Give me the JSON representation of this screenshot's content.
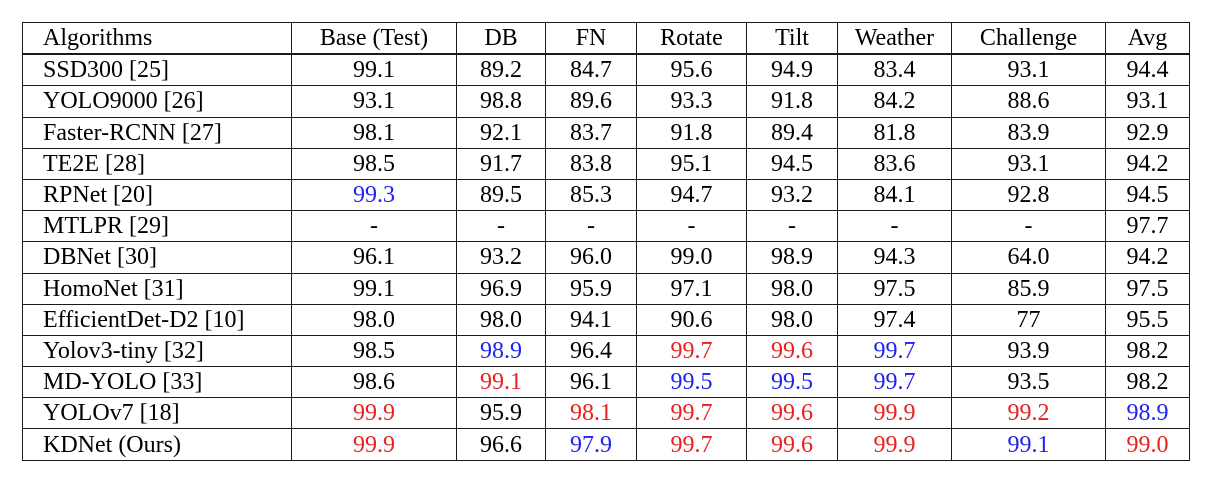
{
  "table": {
    "colors": {
      "first": "#e8211f",
      "second": "#1f22f0"
    },
    "headers": [
      "Algorithms",
      "Base (Test)",
      "DB",
      "FN",
      "Rotate",
      "Tilt",
      "Weather",
      "Challenge",
      "Avg"
    ],
    "rows": [
      {
        "algorithm": "SSD300 [25]",
        "values": [
          "99.1",
          "89.2",
          "84.7",
          "95.6",
          "94.9",
          "83.4",
          "93.1",
          "94.4"
        ],
        "highlight": [
          "",
          "",
          "",
          "",
          "",
          "",
          "",
          ""
        ]
      },
      {
        "algorithm": "YOLO9000 [26]",
        "values": [
          "93.1",
          "98.8",
          "89.6",
          "93.3",
          "91.8",
          "84.2",
          "88.6",
          "93.1"
        ],
        "highlight": [
          "",
          "",
          "",
          "",
          "",
          "",
          "",
          ""
        ]
      },
      {
        "algorithm": "Faster-RCNN [27]",
        "values": [
          "98.1",
          "92.1",
          "83.7",
          "91.8",
          "89.4",
          "81.8",
          "83.9",
          "92.9"
        ],
        "highlight": [
          "",
          "",
          "",
          "",
          "",
          "",
          "",
          ""
        ]
      },
      {
        "algorithm": "TE2E [28]",
        "values": [
          "98.5",
          "91.7",
          "83.8",
          "95.1",
          "94.5",
          "83.6",
          "93.1",
          "94.2"
        ],
        "highlight": [
          "",
          "",
          "",
          "",
          "",
          "",
          "",
          ""
        ]
      },
      {
        "algorithm": "RPNet [20]",
        "values": [
          "99.3",
          "89.5",
          "85.3",
          "94.7",
          "93.2",
          "84.1",
          "92.8",
          "94.5"
        ],
        "highlight": [
          "blue",
          "",
          "",
          "",
          "",
          "",
          "",
          ""
        ]
      },
      {
        "algorithm": "MTLPR [29]",
        "values": [
          "-",
          "-",
          "-",
          "-",
          "-",
          "-",
          "-",
          "97.7"
        ],
        "highlight": [
          "",
          "",
          "",
          "",
          "",
          "",
          "",
          ""
        ]
      },
      {
        "algorithm": "DBNet [30]",
        "values": [
          "96.1",
          "93.2",
          "96.0",
          "99.0",
          "98.9",
          "94.3",
          "64.0",
          "94.2"
        ],
        "highlight": [
          "",
          "",
          "",
          "",
          "",
          "",
          "",
          ""
        ]
      },
      {
        "algorithm": "HomoNet [31]",
        "values": [
          "99.1",
          "96.9",
          "95.9",
          "97.1",
          "98.0",
          "97.5",
          "85.9",
          "97.5"
        ],
        "highlight": [
          "",
          "",
          "",
          "",
          "",
          "",
          "",
          ""
        ]
      },
      {
        "algorithm": "EfficientDet-D2 [10]",
        "values": [
          "98.0",
          "98.0",
          "94.1",
          "90.6",
          "98.0",
          "97.4",
          "77",
          "95.5"
        ],
        "highlight": [
          "",
          "",
          "",
          "",
          "",
          "",
          "",
          ""
        ]
      },
      {
        "algorithm": "Yolov3-tiny [32]",
        "values": [
          "98.5",
          "98.9",
          "96.4",
          "99.7",
          "99.6",
          "99.7",
          "93.9",
          "98.2"
        ],
        "highlight": [
          "",
          "blue",
          "",
          "red",
          "red",
          "blue",
          "",
          ""
        ]
      },
      {
        "algorithm": "MD-YOLO [33]",
        "values": [
          "98.6",
          "99.1",
          "96.1",
          "99.5",
          "99.5",
          "99.7",
          "93.5",
          "98.2"
        ],
        "highlight": [
          "",
          "red",
          "",
          "blue",
          "blue",
          "blue",
          "",
          ""
        ]
      },
      {
        "algorithm": "YOLOv7 [18]",
        "values": [
          "99.9",
          "95.9",
          "98.1",
          "99.7",
          "99.6",
          "99.9",
          "99.2",
          "98.9"
        ],
        "highlight": [
          "red",
          "",
          "red",
          "red",
          "red",
          "red",
          "red",
          "blue"
        ]
      },
      {
        "algorithm": "KDNet (Ours)",
        "values": [
          "99.9",
          "96.6",
          "97.9",
          "99.7",
          "99.6",
          "99.9",
          "99.1",
          "99.0"
        ],
        "highlight": [
          "red",
          "",
          "blue",
          "red",
          "red",
          "red",
          "blue",
          "red"
        ]
      }
    ]
  }
}
